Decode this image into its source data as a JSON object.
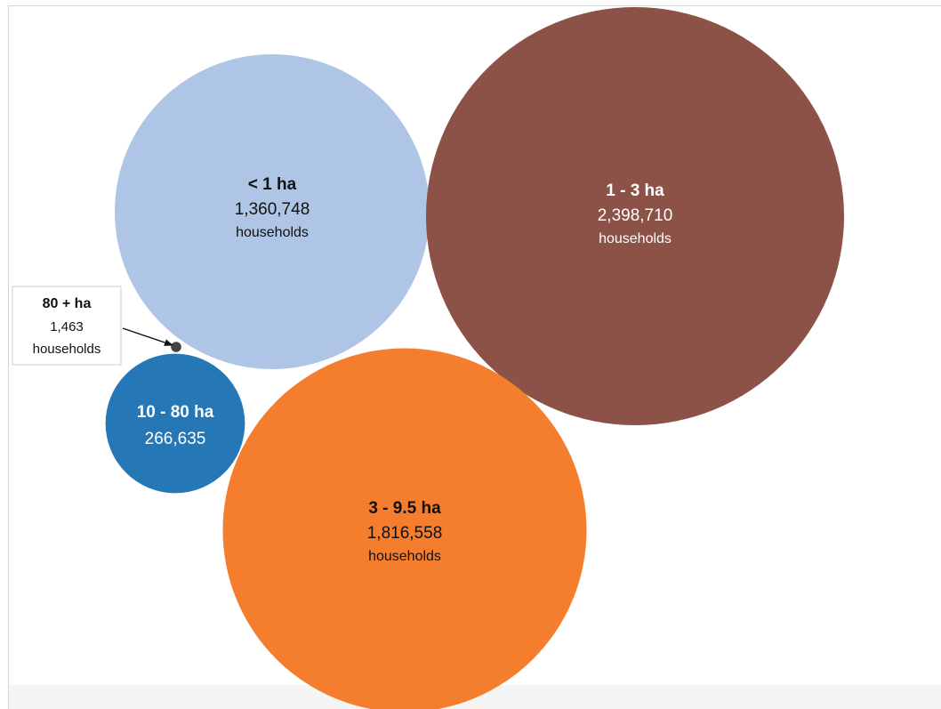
{
  "chart_data": {
    "type": "bubble",
    "title": "",
    "unit": "households",
    "series": [
      {
        "category": "< 1 ha",
        "value": 1360748,
        "value_label": "1,360,748",
        "unit_label": "households",
        "color": "#aec5e6",
        "text_color": "#111111"
      },
      {
        "category": "1 - 3 ha",
        "value": 2398710,
        "value_label": "2,398,710",
        "unit_label": "households",
        "color": "#8c5247",
        "text_color": "#ffffff"
      },
      {
        "category": "3 - 9.5 ha",
        "value": 1816558,
        "value_label": "1,816,558",
        "unit_label": "households",
        "color": "#f47e2e",
        "text_color": "#111111"
      },
      {
        "category": "10 - 80 ha",
        "value": 266635,
        "value_label": "266,635",
        "unit_label": "",
        "color": "#2677b6",
        "text_color": "#ffffff"
      },
      {
        "category": "80 + ha",
        "value": 1463,
        "value_label": "1,463",
        "unit_label": "households",
        "color": "#444444",
        "text_color": "#111111",
        "callout": true
      }
    ]
  }
}
